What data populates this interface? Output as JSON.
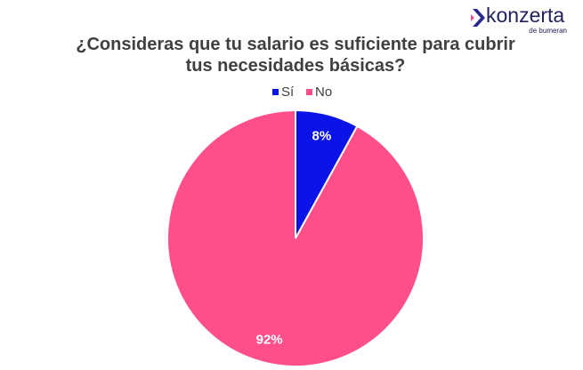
{
  "brand": {
    "name": "konzerta",
    "tagline": "de bumeran"
  },
  "chart_data": {
    "type": "pie",
    "title": "¿Consideras que tu salario es suficiente para cubrir tus necesidades básicas?",
    "categories": [
      "Sí",
      "No"
    ],
    "values": [
      8,
      92
    ],
    "value_labels": [
      "8%",
      "92%"
    ],
    "colors": [
      "#0a14e8",
      "#ff4f8b"
    ],
    "legend": "top"
  }
}
